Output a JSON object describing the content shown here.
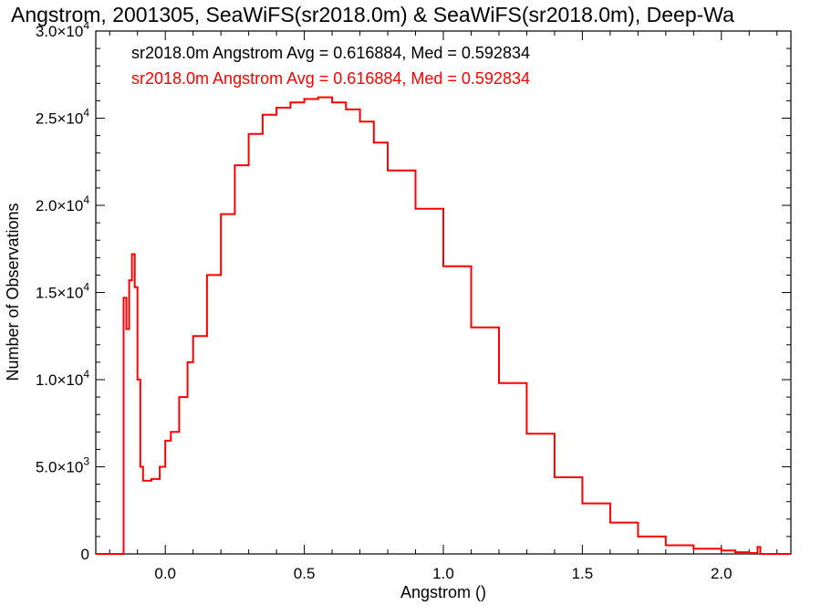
{
  "chart_data": {
    "type": "line",
    "title": "Angstrom, 2001305, SeaWiFS(sr2018.0m) & SeaWiFS(sr2018.0m), Deep-Wa",
    "xlabel": "Angstrom ()",
    "ylabel": "Number of Observations",
    "xlim": [
      -0.25,
      2.25
    ],
    "ylim": [
      0,
      30000
    ],
    "x_ticks": [
      {
        "value": 0.0,
        "label": "0.0"
      },
      {
        "value": 0.5,
        "label": "0.5"
      },
      {
        "value": 1.0,
        "label": "1.0"
      },
      {
        "value": 1.5,
        "label": "1.5"
      },
      {
        "value": 2.0,
        "label": "2.0"
      }
    ],
    "y_ticks": [
      {
        "value": 0,
        "mant": "0",
        "exp": ""
      },
      {
        "value": 5000,
        "mant": "5.0×10",
        "exp": "3"
      },
      {
        "value": 10000,
        "mant": "1.0×10",
        "exp": "4"
      },
      {
        "value": 15000,
        "mant": "1.5×10",
        "exp": "4"
      },
      {
        "value": 20000,
        "mant": "2.0×10",
        "exp": "4"
      },
      {
        "value": 25000,
        "mant": "2.5×10",
        "exp": "4"
      },
      {
        "value": 30000,
        "mant": "3.0×10",
        "exp": "4"
      }
    ],
    "legend": [
      {
        "text": "sr2018.0m Angstrom Avg = 0.616884, Med = 0.592834",
        "color": "#000000"
      },
      {
        "text": "sr2018.0m Angstrom Avg = 0.616884, Med = 0.592834",
        "color": "#ff0000"
      }
    ],
    "legend_placement": "top-left",
    "series": [
      {
        "color": "#ff0000",
        "step": true,
        "x": [
          -0.25,
          -0.16,
          -0.15,
          -0.14,
          -0.13,
          -0.12,
          -0.11,
          -0.1,
          -0.09,
          -0.08,
          -0.05,
          -0.02,
          0.0,
          0.02,
          0.05,
          0.08,
          0.1,
          0.15,
          0.2,
          0.25,
          0.3,
          0.35,
          0.4,
          0.45,
          0.5,
          0.55,
          0.6,
          0.65,
          0.7,
          0.75,
          0.8,
          0.9,
          1.0,
          1.1,
          1.2,
          1.3,
          1.4,
          1.5,
          1.6,
          1.7,
          1.8,
          1.9,
          2.0,
          2.05,
          2.1,
          2.13,
          2.14,
          2.15,
          2.25
        ],
        "y": [
          0,
          0,
          14700,
          12900,
          15700,
          17200,
          15300,
          10000,
          5000,
          4200,
          4300,
          5000,
          6500,
          7000,
          9000,
          11000,
          12500,
          16000,
          19500,
          22300,
          24100,
          25200,
          25600,
          25900,
          26100,
          26200,
          25900,
          25500,
          24800,
          23600,
          22000,
          19800,
          16500,
          13000,
          9800,
          6900,
          4400,
          2900,
          1800,
          1000,
          500,
          300,
          200,
          100,
          50,
          400,
          0,
          0,
          0
        ]
      }
    ]
  }
}
